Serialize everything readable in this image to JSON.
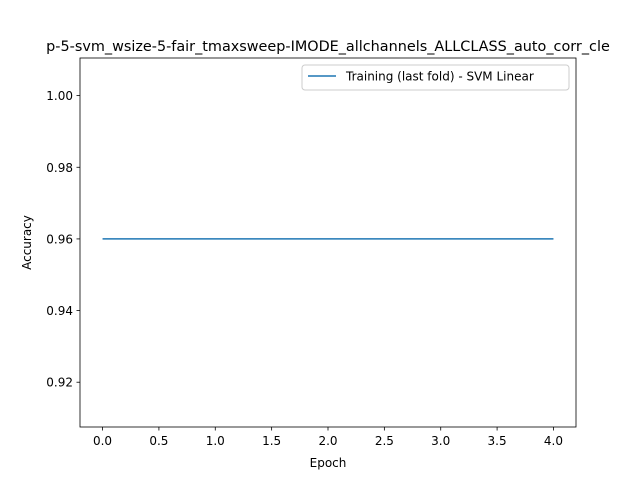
{
  "chart_data": {
    "type": "line",
    "title": "p-5-svm_wsize-5-fair_tmaxsweep-IMODE_allchannels_ALLCLASS_auto_corr_cle",
    "xlabel": "Epoch",
    "ylabel": "Accuracy",
    "xlim": [
      -0.2,
      4.2
    ],
    "ylim": [
      0.9075,
      1.0105
    ],
    "xticks": [
      0.0,
      0.5,
      1.0,
      1.5,
      2.0,
      2.5,
      3.0,
      3.5,
      4.0
    ],
    "xtick_labels": [
      "0.0",
      "0.5",
      "1.0",
      "1.5",
      "2.0",
      "2.5",
      "3.0",
      "3.5",
      "4.0"
    ],
    "yticks": [
      0.92,
      0.94,
      0.96,
      0.98,
      1.0
    ],
    "ytick_labels": [
      "0.92",
      "0.94",
      "0.96",
      "0.98",
      "1.00"
    ],
    "grid": false,
    "legend_position": "upper-right",
    "series": [
      {
        "name": "Training (last fold) - SVM Linear",
        "color": "#1f77b4",
        "x": [
          0,
          1,
          2,
          3,
          4
        ],
        "y": [
          0.96,
          0.96,
          0.96,
          0.96,
          0.96
        ]
      }
    ]
  }
}
